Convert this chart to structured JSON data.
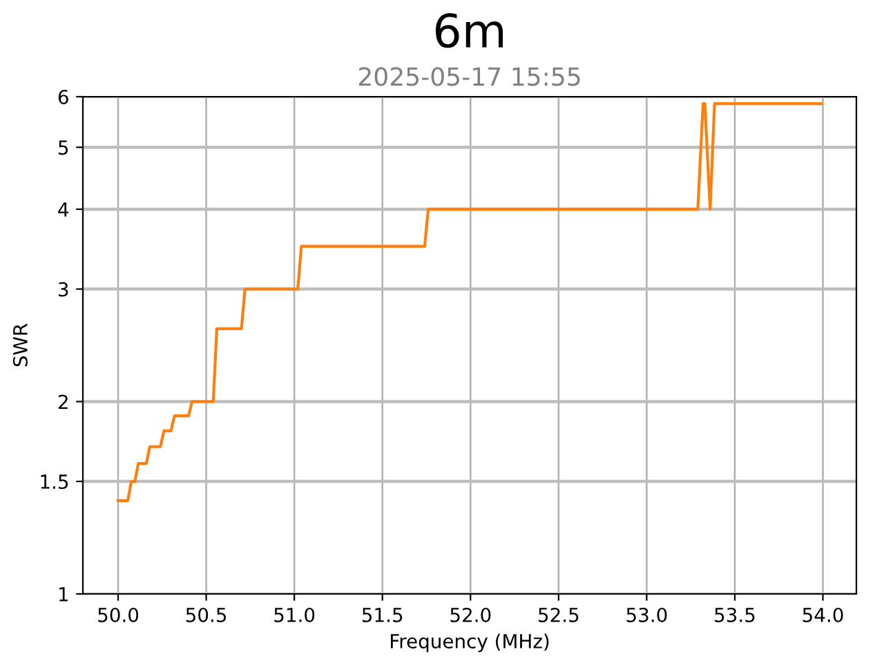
{
  "chart_data": {
    "type": "line",
    "title": "6m",
    "subtitle": "2025-05-17 15:55",
    "xlabel": "Frequency (MHz)",
    "ylabel": "SWR",
    "series": [
      {
        "color": "#ff7f0e",
        "x": [
          50.0,
          50.055,
          50.075,
          50.095,
          50.115,
          50.16,
          50.18,
          50.24,
          50.26,
          50.3,
          50.32,
          50.4,
          50.42,
          50.54,
          50.56,
          50.7,
          50.72,
          51.02,
          51.04,
          51.74,
          51.76,
          53.29,
          53.32,
          53.33,
          53.36,
          53.385,
          53.99
        ],
        "values": [
          1.4,
          1.4,
          1.5,
          1.5,
          1.6,
          1.6,
          1.7,
          1.7,
          1.8,
          1.8,
          1.9,
          1.9,
          2.0,
          2.0,
          2.6,
          2.6,
          3.0,
          3.0,
          3.5,
          3.5,
          4.0,
          4.0,
          5.85,
          5.85,
          4.0,
          5.85,
          5.85
        ]
      }
    ],
    "xlim": [
      49.8,
      54.19
    ],
    "xticks": [
      {
        "value": 50,
        "label": "50.0"
      },
      50.5,
      {
        "value": 51,
        "label": "51.0"
      },
      51.5,
      {
        "value": 52,
        "label": "52.0"
      },
      52.5,
      {
        "value": 53,
        "label": "53.0"
      },
      53.5,
      {
        "value": 54,
        "label": "54.0"
      }
    ],
    "ylim": [
      1,
      6
    ],
    "yticks": [
      1,
      1.5,
      2,
      3,
      4,
      5,
      6
    ],
    "log": "y",
    "grid": true,
    "marker": "none",
    "line_style": "solid"
  }
}
